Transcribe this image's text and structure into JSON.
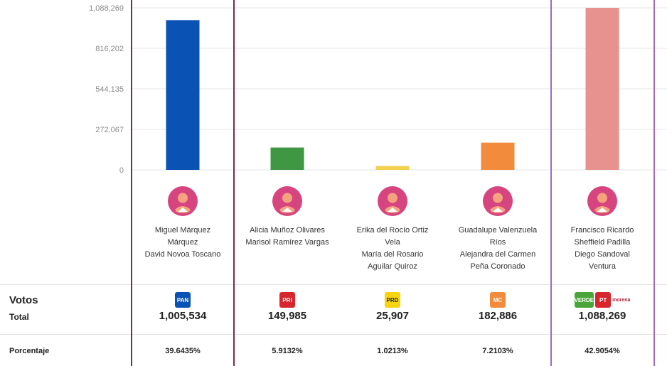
{
  "chart_data": {
    "type": "bar",
    "ylim": [
      0,
      1088269
    ],
    "yticks": [
      "1,088,269",
      "816,202",
      "544,135",
      "272,067",
      "0"
    ],
    "ytick_values": [
      1088269,
      816202,
      544135,
      272067,
      0
    ],
    "grid": true,
    "categories": [
      "Miguel Márquez Márquez / David Novoa Toscano",
      "Alicia Muñoz Olivares / Marisol Ramírez Vargas",
      "Erika del Rocío Ortiz Vela / María del Rosario Aguilar Quiroz",
      "Guadalupe Valenzuela Ríos / Alejandra del Carmen Peña Coronado",
      "Francisco Ricardo Sheffield Padilla / Diego Sandoval Ventura"
    ],
    "values": [
      1005534,
      149985,
      25907,
      182886,
      1088269
    ],
    "colors": [
      "#0b52b5",
      "#3f9744",
      "#f2d14e",
      "#f28c3c",
      "#e89290"
    ]
  },
  "candidates": [
    {
      "lines": [
        "Miguel Márquez",
        "Márquez",
        "David Novoa Toscano"
      ],
      "votes": "1,005,534",
      "pct": "39.6435%",
      "parties": [
        "PAN"
      ]
    },
    {
      "lines": [
        "Alicia Muñoz Olivares",
        "Marisol Ramírez Vargas"
      ],
      "votes": "149,985",
      "pct": "5.9132%",
      "parties": [
        "PRI"
      ]
    },
    {
      "lines": [
        "Erika del Rocío Ortiz",
        "Vela",
        "María del Rosario",
        "Aguilar Quiroz"
      ],
      "votes": "25,907",
      "pct": "1.0213%",
      "parties": [
        "PRD"
      ]
    },
    {
      "lines": [
        "Guadalupe Valenzuela",
        "Ríos",
        "Alejandra del Carmen",
        "Peña Coronado"
      ],
      "votes": "182,886",
      "pct": "7.2103%",
      "parties": [
        "MC"
      ]
    },
    {
      "lines": [
        "Francisco Ricardo",
        "Sheffield Padilla",
        "Diego Sandoval",
        "Ventura"
      ],
      "votes": "1,088,269",
      "pct": "42.9054%",
      "parties": [
        "VERDE",
        "PT",
        "morena"
      ]
    }
  ],
  "labels": {
    "votos": "Votos",
    "total": "Total",
    "porcentaje": "Porcentaje"
  },
  "colors": {
    "divider_maroon": "#7b2a52",
    "divider_purple": "#a06ac0",
    "avatar_pink": "#d6457f",
    "avatar_skin": "#f4a37e"
  },
  "party_logos": {
    "PAN": {
      "text": "PAN",
      "color": "#0b52b5"
    },
    "PRI": {
      "text": "PRI",
      "color": "#d7262d"
    },
    "PRD": {
      "text": "PRD",
      "color": "#f6d40f"
    },
    "MC": {
      "text": "MC",
      "color": "#f28c3c"
    },
    "VERDE": {
      "text": "VERDE",
      "color": "#4aa53b"
    },
    "PT": {
      "text": "PT",
      "color": "#d7262d"
    },
    "morena": {
      "text": "morena",
      "color": "#a8233a"
    }
  }
}
